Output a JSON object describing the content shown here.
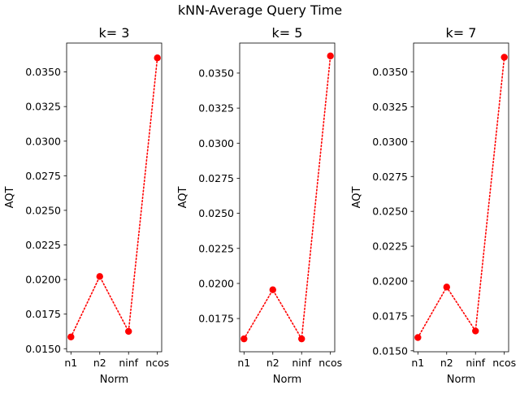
{
  "figure": {
    "title": "kNN-Average Query Time"
  },
  "style": {
    "series_color": "#ff0000",
    "axes_color": "#000000",
    "background": "#ffffff"
  },
  "chart_data": [
    {
      "type": "line",
      "title": "k= 3",
      "xlabel": "Norm",
      "ylabel": "AQT",
      "categories": [
        "n1",
        "n2",
        "ninf",
        "ncos"
      ],
      "values": [
        0.01585,
        0.02022,
        0.01625,
        0.03602
      ],
      "ylim": [
        0.01478,
        0.03709
      ],
      "yticks": [
        0.015,
        0.0175,
        0.02,
        0.0225,
        0.025,
        0.0275,
        0.03,
        0.0325,
        0.035
      ],
      "ytick_labels": [
        "0.0150",
        "0.0175",
        "0.0200",
        "0.0225",
        "0.0250",
        "0.0275",
        "0.0300",
        "0.0325",
        "0.0350"
      ],
      "line_style": "dotted",
      "marker": "circle",
      "grid": false
    },
    {
      "type": "line",
      "title": "k= 5",
      "xlabel": "Norm",
      "ylabel": "AQT",
      "categories": [
        "n1",
        "n2",
        "ninf",
        "ncos"
      ],
      "values": [
        0.01605,
        0.01955,
        0.01605,
        0.03622
      ],
      "ylim": [
        0.01513,
        0.03714
      ],
      "yticks": [
        0.0175,
        0.02,
        0.0225,
        0.025,
        0.0275,
        0.03,
        0.0325,
        0.035
      ],
      "ytick_labels": [
        "0.0175",
        "0.0200",
        "0.0225",
        "0.0250",
        "0.0275",
        "0.0300",
        "0.0325",
        "0.0350"
      ],
      "line_style": "dotted",
      "marker": "circle",
      "grid": false
    },
    {
      "type": "line",
      "title": "k= 7",
      "xlabel": "Norm",
      "ylabel": "AQT",
      "categories": [
        "n1",
        "n2",
        "ninf",
        "ncos"
      ],
      "values": [
        0.01595,
        0.01957,
        0.01642,
        0.03605
      ],
      "ylim": [
        0.01493,
        0.03707
      ],
      "yticks": [
        0.015,
        0.0175,
        0.02,
        0.0225,
        0.025,
        0.0275,
        0.03,
        0.0325,
        0.035
      ],
      "ytick_labels": [
        "0.0150",
        "0.0175",
        "0.0200",
        "0.0225",
        "0.0250",
        "0.0275",
        "0.0300",
        "0.0325",
        "0.0350"
      ],
      "line_style": "dotted",
      "marker": "circle",
      "grid": false
    }
  ]
}
